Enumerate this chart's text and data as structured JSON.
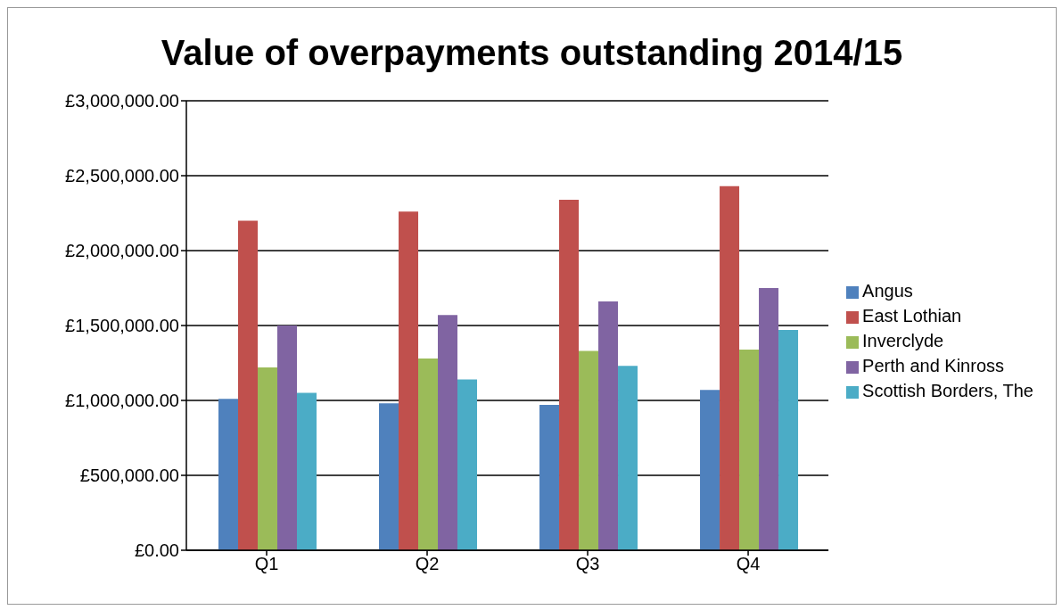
{
  "chart_data": {
    "type": "bar",
    "title": "Value of overpayments outstanding 2014/15",
    "categories": [
      "Q1",
      "Q2",
      "Q3",
      "Q4"
    ],
    "series": [
      {
        "name": "Angus",
        "color": "#4f81bd",
        "values": [
          1010000,
          980000,
          970000,
          1070000
        ]
      },
      {
        "name": "East Lothian",
        "color": "#c0504d",
        "values": [
          2200000,
          2260000,
          2340000,
          2430000
        ]
      },
      {
        "name": "Inverclyde",
        "color": "#9bbb59",
        "values": [
          1220000,
          1280000,
          1330000,
          1340000
        ]
      },
      {
        "name": "Perth and Kinross",
        "color": "#8064a2",
        "values": [
          1500000,
          1570000,
          1660000,
          1750000
        ]
      },
      {
        "name": "Scottish Borders, The",
        "color": "#4bacc6",
        "values": [
          1050000,
          1140000,
          1230000,
          1470000
        ]
      }
    ],
    "ylim": [
      0,
      3000000
    ],
    "yticks": [
      {
        "value": 0,
        "label": "£0.00"
      },
      {
        "value": 500000,
        "label": "£500,000.00"
      },
      {
        "value": 1000000,
        "label": "£1,000,000.00"
      },
      {
        "value": 1500000,
        "label": "£1,500,000.00"
      },
      {
        "value": 2000000,
        "label": "£2,000,000.00"
      },
      {
        "value": 2500000,
        "label": "£2,500,000.00"
      },
      {
        "value": 3000000,
        "label": "£3,000,000.00"
      }
    ],
    "grid": "y",
    "legend": "right"
  }
}
